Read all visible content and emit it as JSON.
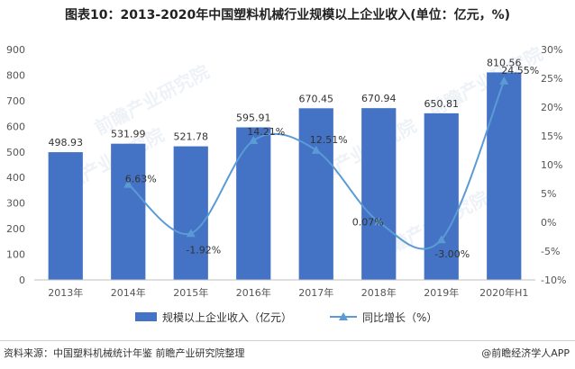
{
  "title": "图表10：2013-2020年中国塑料机械行业规模以上企业收入(单位：亿元，%)",
  "footer": {
    "source": "资料来源：中国塑料机械统计年鉴 前瞻产业研究院整理",
    "brand": "@前瞻经济学人APP"
  },
  "watermark": "前瞻产业研究院",
  "colors": {
    "bar": "#4472C4",
    "line": "#5B9BD5",
    "axis_text": "#555555",
    "grid": "#e5e5e5"
  },
  "chart_data": {
    "type": "bar",
    "categories": [
      "2013年",
      "2014年",
      "2015年",
      "2016年",
      "2017年",
      "2018年",
      "2019年",
      "2020年H1"
    ],
    "series": [
      {
        "name": "规模以上企业收入（亿元）",
        "type": "bar",
        "axis": "left",
        "values": [
          498.93,
          531.99,
          521.78,
          595.91,
          670.45,
          670.94,
          650.81,
          810.56
        ],
        "labels": [
          "498.93",
          "531.99",
          "521.78",
          "595.91",
          "670.45",
          "670.94",
          "650.81",
          "810.56"
        ]
      },
      {
        "name": "同比增长（%）",
        "type": "line",
        "axis": "right",
        "values": [
          null,
          6.63,
          -1.92,
          14.21,
          12.51,
          0.07,
          -3.0,
          24.55
        ],
        "labels": [
          "",
          "6.63%",
          "-1.92%",
          "14.21%",
          "12.51%",
          "0.07%",
          "-3.00%",
          "24.55%"
        ]
      }
    ],
    "y_left": {
      "min": 0,
      "max": 900,
      "ticks": [
        "0",
        "100",
        "200",
        "300",
        "400",
        "500",
        "600",
        "700",
        "800",
        "900"
      ]
    },
    "y_right": {
      "min": -10,
      "max": 30,
      "ticks": [
        "-10%",
        "-5%",
        "0%",
        "5%",
        "10%",
        "15%",
        "20%",
        "25%",
        "30%"
      ]
    },
    "legend": "bottom",
    "grid": false
  }
}
